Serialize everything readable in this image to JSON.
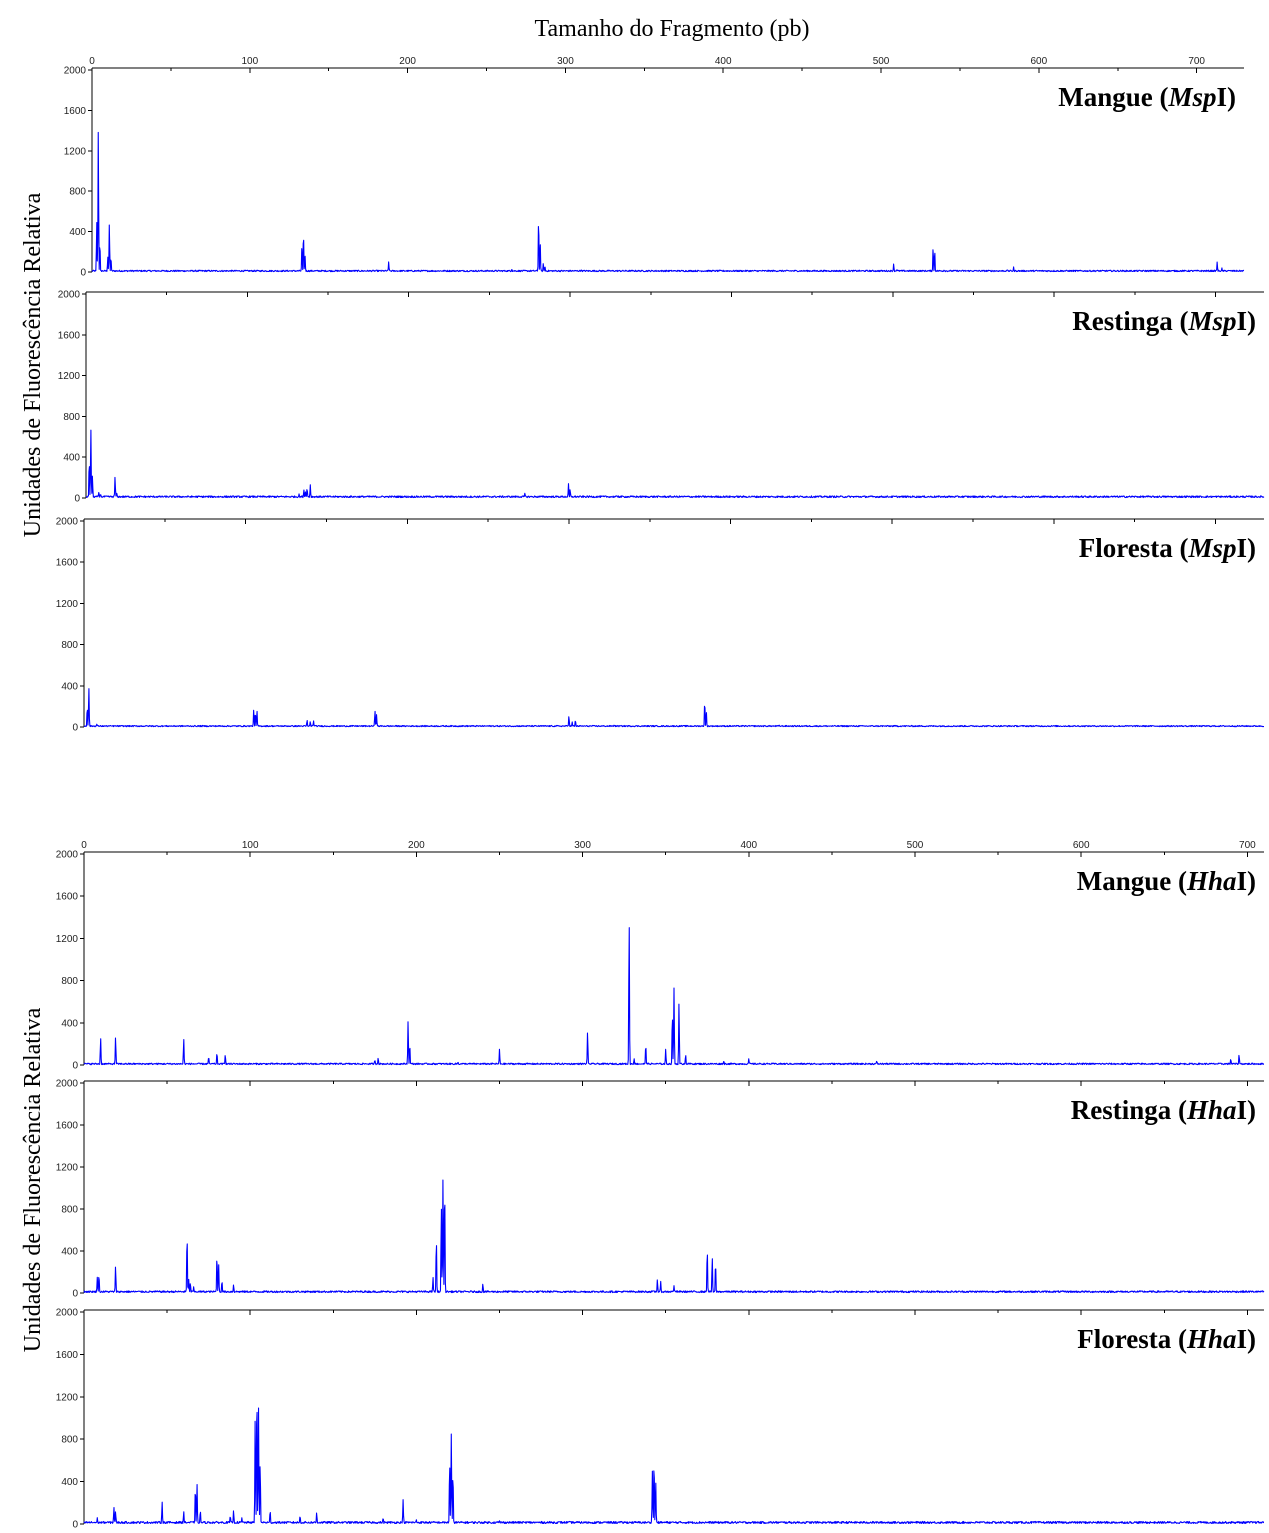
{
  "figure": {
    "top_axis_title": "Tamanho do Fragmento (pb)",
    "y_axis_title_top": "Unidades de Fluorescência Relativa",
    "y_axis_title_bottom": "Unidades de Fluorescência Relativa",
    "line_color": "#0000ff"
  },
  "chart_data": [
    {
      "type": "line",
      "group": "MspI",
      "show_x_axis": true,
      "title_pre": "Mangue (",
      "title_em": "Msp",
      "title_post": "I)",
      "xlim": [
        0,
        730
      ],
      "ylim": [
        0,
        2000
      ],
      "x_ticks": [
        0,
        100,
        200,
        300,
        400,
        500,
        600,
        700
      ],
      "y_ticks": [
        0,
        400,
        800,
        1200,
        1600,
        2000
      ],
      "baseline": 12,
      "peaks": [
        [
          3,
          500
        ],
        [
          4,
          1420
        ],
        [
          5,
          300
        ],
        [
          10,
          150
        ],
        [
          11,
          480
        ],
        [
          12,
          150
        ],
        [
          133,
          250
        ],
        [
          134,
          400
        ],
        [
          135,
          160
        ],
        [
          158,
          15
        ],
        [
          188,
          100
        ],
        [
          266,
          30
        ],
        [
          283,
          550
        ],
        [
          284,
          300
        ],
        [
          286,
          90
        ],
        [
          287,
          60
        ],
        [
          310,
          20
        ],
        [
          508,
          80
        ],
        [
          510,
          25
        ],
        [
          533,
          250
        ],
        [
          534,
          220
        ],
        [
          540,
          20
        ],
        [
          580,
          20
        ],
        [
          584,
          50
        ],
        [
          713,
          100
        ],
        [
          716,
          40
        ],
        [
          720,
          15
        ]
      ]
    },
    {
      "type": "line",
      "group": "MspI",
      "show_x_axis": false,
      "title_pre": "Restinga (",
      "title_em": "Msp",
      "title_post": "I)",
      "xlim": [
        0,
        730
      ],
      "ylim": [
        0,
        2000
      ],
      "x_ticks": [
        0,
        100,
        200,
        300,
        400,
        500,
        600,
        700
      ],
      "y_ticks": [
        0,
        400,
        800,
        1200,
        1600,
        2000
      ],
      "baseline": 14,
      "peaks": [
        [
          2,
          380
        ],
        [
          3,
          680
        ],
        [
          4,
          220
        ],
        [
          8,
          60
        ],
        [
          9,
          40
        ],
        [
          18,
          210
        ],
        [
          19,
          60
        ],
        [
          132,
          40
        ],
        [
          135,
          80
        ],
        [
          136,
          60
        ],
        [
          137,
          100
        ],
        [
          139,
          130
        ],
        [
          272,
          50
        ],
        [
          299,
          140
        ],
        [
          300,
          90
        ],
        [
          330,
          20
        ]
      ]
    },
    {
      "type": "line",
      "group": "MspI",
      "show_x_axis": false,
      "title_pre": "Floresta (",
      "title_em": "Msp",
      "title_post": "I)",
      "xlim": [
        0,
        730
      ],
      "ylim": [
        0,
        2000
      ],
      "x_ticks": [
        0,
        100,
        200,
        300,
        400,
        500,
        600,
        700
      ],
      "y_ticks": [
        0,
        400,
        800,
        1200,
        1600,
        2000
      ],
      "baseline": 10,
      "peaks": [
        [
          2,
          200
        ],
        [
          3,
          380
        ],
        [
          8,
          30
        ],
        [
          105,
          170
        ],
        [
          106,
          150
        ],
        [
          107,
          160
        ],
        [
          138,
          70
        ],
        [
          140,
          55
        ],
        [
          142,
          60
        ],
        [
          180,
          160
        ],
        [
          181,
          120
        ],
        [
          300,
          110
        ],
        [
          302,
          50
        ],
        [
          304,
          70
        ],
        [
          328,
          20
        ],
        [
          384,
          260
        ],
        [
          385,
          150
        ],
        [
          430,
          20
        ]
      ]
    },
    {
      "type": "line",
      "group": "HhaI",
      "show_x_axis": true,
      "title_pre": "Mangue (",
      "title_em": "Hha",
      "title_post": "I)",
      "xlim": [
        0,
        710
      ],
      "ylim": [
        0,
        2000
      ],
      "x_ticks": [
        0,
        100,
        200,
        300,
        400,
        500,
        600,
        700
      ],
      "y_ticks": [
        0,
        400,
        800,
        1200,
        1600,
        2000
      ],
      "baseline": 12,
      "peaks": [
        [
          10,
          260
        ],
        [
          19,
          270
        ],
        [
          60,
          250
        ],
        [
          75,
          80
        ],
        [
          80,
          120
        ],
        [
          85,
          100
        ],
        [
          175,
          50
        ],
        [
          177,
          70
        ],
        [
          195,
          420
        ],
        [
          196,
          200
        ],
        [
          225,
          30
        ],
        [
          250,
          150
        ],
        [
          303,
          320
        ],
        [
          328,
          1410
        ],
        [
          331,
          60
        ],
        [
          338,
          200
        ],
        [
          350,
          150
        ],
        [
          354,
          500
        ],
        [
          355,
          730
        ],
        [
          358,
          590
        ],
        [
          362,
          100
        ],
        [
          385,
          40
        ],
        [
          400,
          60
        ],
        [
          477,
          40
        ],
        [
          690,
          60
        ],
        [
          695,
          100
        ]
      ]
    },
    {
      "type": "line",
      "group": "HhaI",
      "show_x_axis": false,
      "title_pre": "Restinga (",
      "title_em": "Hha",
      "title_post": "I)",
      "xlim": [
        0,
        710
      ],
      "ylim": [
        0,
        2000
      ],
      "x_ticks": [
        0,
        100,
        200,
        300,
        400,
        500,
        600,
        700
      ],
      "y_ticks": [
        0,
        400,
        800,
        1200,
        1600,
        2000
      ],
      "baseline": 14,
      "peaks": [
        [
          8,
          150
        ],
        [
          9,
          180
        ],
        [
          19,
          260
        ],
        [
          62,
          570
        ],
        [
          63,
          130
        ],
        [
          64,
          100
        ],
        [
          66,
          60
        ],
        [
          80,
          370
        ],
        [
          81,
          280
        ],
        [
          83,
          120
        ],
        [
          90,
          80
        ],
        [
          210,
          150
        ],
        [
          212,
          530
        ],
        [
          215,
          850
        ],
        [
          216,
          1100
        ],
        [
          217,
          1080
        ],
        [
          240,
          90
        ],
        [
          345,
          130
        ],
        [
          347,
          110
        ],
        [
          355,
          70
        ],
        [
          375,
          430
        ],
        [
          378,
          350
        ],
        [
          380,
          300
        ]
      ]
    },
    {
      "type": "line",
      "group": "HhaI",
      "show_x_axis": false,
      "title_pre": "Floresta (",
      "title_em": "Hha",
      "title_post": "I)",
      "xlim": [
        0,
        710
      ],
      "ylim": [
        0,
        2000
      ],
      "x_ticks": [
        0,
        100,
        200,
        300,
        400,
        500,
        600,
        700
      ],
      "y_ticks": [
        0,
        400,
        800,
        1200,
        1600,
        2000
      ],
      "baseline": 16,
      "peaks": [
        [
          8,
          60
        ],
        [
          18,
          160
        ],
        [
          19,
          120
        ],
        [
          47,
          210
        ],
        [
          60,
          120
        ],
        [
          67,
          360
        ],
        [
          68,
          380
        ],
        [
          70,
          130
        ],
        [
          88,
          80
        ],
        [
          90,
          130
        ],
        [
          95,
          60
        ],
        [
          103,
          1000
        ],
        [
          104,
          1320
        ],
        [
          105,
          1100
        ],
        [
          106,
          600
        ],
        [
          112,
          130
        ],
        [
          130,
          80
        ],
        [
          140,
          110
        ],
        [
          180,
          60
        ],
        [
          192,
          230
        ],
        [
          200,
          40
        ],
        [
          220,
          600
        ],
        [
          221,
          850
        ],
        [
          222,
          500
        ],
        [
          250,
          30
        ],
        [
          342,
          500
        ],
        [
          343,
          620
        ],
        [
          344,
          400
        ]
      ]
    }
  ]
}
